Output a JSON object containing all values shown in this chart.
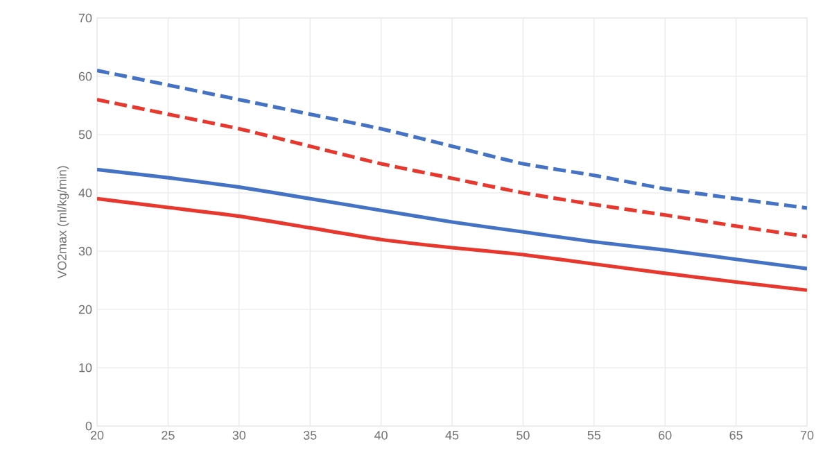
{
  "chart_data": {
    "type": "line",
    "ylabel": "VO2max (ml/kg/min)",
    "x": [
      20,
      25,
      30,
      35,
      40,
      45,
      50,
      55,
      60,
      65,
      70
    ],
    "series": [
      {
        "color": "#4472c4",
        "line_style": "dashed",
        "values": [
          61,
          58.5,
          56,
          53.5,
          51,
          48,
          45,
          43,
          40.7,
          39,
          37.4
        ]
      },
      {
        "color": "#e8382e",
        "line_style": "dashed",
        "values": [
          56,
          53.5,
          51,
          48,
          45,
          42.5,
          40,
          38,
          36.2,
          34.3,
          32.5
        ]
      },
      {
        "color": "#4472c4",
        "line_style": "solid",
        "values": [
          44,
          42.6,
          41,
          39,
          37,
          35,
          33.3,
          31.6,
          30.2,
          28.6,
          27
        ]
      },
      {
        "color": "#e8382e",
        "line_style": "solid",
        "values": [
          39,
          37.5,
          36,
          34,
          32,
          30.6,
          29.4,
          27.8,
          26.2,
          24.7,
          23.3
        ]
      }
    ],
    "xlim": [
      20,
      70
    ],
    "xticks": [
      20,
      25,
      30,
      35,
      40,
      45,
      50,
      55,
      60,
      65,
      70
    ],
    "ylim": [
      0,
      70
    ],
    "yticks": [
      0,
      10,
      20,
      30,
      40,
      50,
      60,
      70
    ],
    "grid": true,
    "marker": "none"
  }
}
